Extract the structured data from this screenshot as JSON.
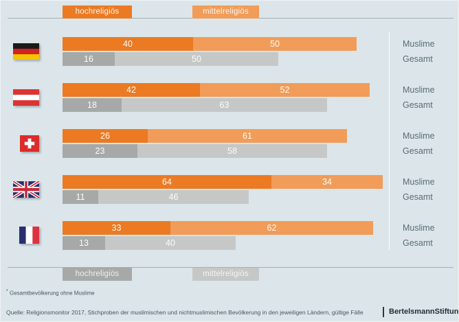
{
  "legend": {
    "hoch": "hochreligiös",
    "mittel": "mittelreligiös"
  },
  "row_labels": {
    "muslime": "Muslime",
    "gesamt": "Gesamt"
  },
  "footnote": {
    "mark": "*",
    "text": "Gesamtbevölkerung ohne Muslime"
  },
  "source": "Quelle: Religionsmonitor 2017, Stichproben der muslimischen und nichtmuslimischen Bevölkerung in den jeweiligen Ländern, gültige Fälle",
  "logo": {
    "part1": "Bertelsmann",
    "part2": "Stiftung"
  },
  "colors": {
    "background": "#dce6ea",
    "hoch_orange": "#eb7a23",
    "mittel_orange": "#f19c58",
    "hoch_gray": "#a7a9a9",
    "mittel_gray": "#c6c8c8"
  },
  "chart_data": {
    "type": "bar",
    "orientation": "horizontal",
    "stacked": true,
    "unit": "percent",
    "xlim": [
      0,
      100
    ],
    "legend_entries": [
      "hochreligiös",
      "mittelreligiös"
    ],
    "group_labels": [
      "Muslime",
      "Gesamt"
    ],
    "rows": [
      {
        "country": "Germany",
        "flag_icon": "flag-germany-icon",
        "muslime": [
          40,
          50
        ],
        "gesamt": [
          16,
          50
        ]
      },
      {
        "country": "Austria",
        "flag_icon": "flag-austria-icon",
        "muslime": [
          42,
          52
        ],
        "gesamt": [
          18,
          63
        ]
      },
      {
        "country": "Switzerland",
        "flag_icon": "flag-switzerland-icon",
        "muslime": [
          26,
          61
        ],
        "gesamt": [
          23,
          58
        ]
      },
      {
        "country": "United Kingdom",
        "flag_icon": "flag-united-kingdom-icon",
        "muslime": [
          64,
          34
        ],
        "gesamt": [
          11,
          46
        ]
      },
      {
        "country": "France",
        "flag_icon": "flag-france-icon",
        "muslime": [
          33,
          62
        ],
        "gesamt": [
          13,
          40
        ]
      }
    ],
    "notes": "Gray 'Gesamt' bars = total population excluding Muslims (see footnote)"
  }
}
